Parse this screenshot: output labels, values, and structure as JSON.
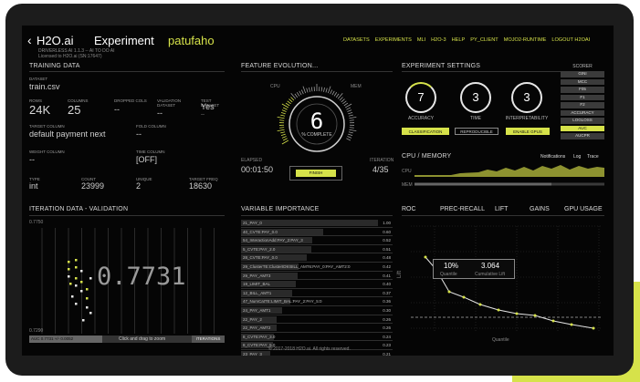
{
  "header": {
    "back_icon": "chevron-left-icon",
    "logo": "H2O.ai",
    "title_prefix": "Experiment",
    "experiment_name": "patufaho",
    "subtitle1": "DRIVERLESS AI 1.1.3 -- AI TO DO AI",
    "subtitle2": "Licensed to H2O.ai (SN:17647)",
    "nav": [
      "DATASETS",
      "EXPERIMENTS",
      "MLI",
      "H2O-3",
      "HELP",
      "PY_CLIENT",
      "MOJO2-RUNTIME",
      "LOGOUT H2OAI"
    ]
  },
  "training": {
    "section": "TRAINING DATA",
    "dataset_label": "DATASET",
    "dataset": "train.csv",
    "rows_label": "ROWS",
    "rows": "24K",
    "columns_label": "COLUMNS",
    "columns": "25",
    "dropped_label": "DROPPED COLS",
    "dropped": "--",
    "validation_label": "VALIDATION DATASET",
    "validation": "--",
    "test_label": "TEST DATASET",
    "test": "Yes",
    "test_sub": "--",
    "target_label": "TARGET COLUMN",
    "target": "default payment next",
    "fold_label": "FOLD COLUMN",
    "fold": "--",
    "weight_label": "WEIGHT COLUMN",
    "weight": "--",
    "time_label": "TIME COLUMN",
    "time": "[OFF]",
    "type_label": "TYPE",
    "type": "int",
    "count_label": "COUNT",
    "count": "23999",
    "unique_label": "UNIQUE",
    "unique": "2",
    "freq_label": "TARGET FREQ",
    "freq": "18630"
  },
  "evolution": {
    "section": "FEATURE EVOLUTION...",
    "cpu_label": "CPU",
    "mem_label": "MEM",
    "progress": 6,
    "progress_label": "% COMPLETE",
    "elapsed_label": "ELAPSED",
    "elapsed": "00:01:50",
    "iteration_label": "ITERATION",
    "iteration": "4/35",
    "finish": "FINISH"
  },
  "settings": {
    "section": "EXPERIMENT SETTINGS",
    "accuracy": "7",
    "accuracy_label": "ACCURACY",
    "time": "3",
    "time_label": "TIME",
    "interpretability": "3",
    "interpretability_label": "INTERPRETABILITY",
    "btn_classification": "CLASSIFICATION",
    "btn_reproducible": "REPRODUCIBLE",
    "btn_gpus": "ENABLE GPUS",
    "scorer_label": "SCORER",
    "scorers": [
      "GINI",
      "MCC",
      "F05",
      "F1",
      "F2",
      "ACCURACY",
      "LOGLOSS",
      "AUC",
      "AUCPR"
    ],
    "scorer_selected": "AUC"
  },
  "cpu": {
    "section": "CPU / MEMORY",
    "tabs": [
      "Notifications",
      "Log",
      "Trace"
    ],
    "cpu_label": "CPU",
    "mem_label": "MEM"
  },
  "iteration": {
    "section": "ITERATION DATA - VALIDATION",
    "top_value": "0.7750",
    "bottom_value": "0.7290",
    "big_value": "0.7731",
    "footer_left": "AUC 0.7731 +/- 0.0052",
    "footer_hint": "Click and drag to zoom",
    "footer_right": "ITERATIONS"
  },
  "importance": {
    "section": "VARIABLE IMPORTANCE",
    "rows": [
      {
        "name": "21_PAY_0",
        "value": "1.00"
      },
      {
        "name": "40_CVTE:PAY_0.0",
        "value": "0.60"
      },
      {
        "name": "54_InteractionAdd:PAY_2:PAY_3",
        "value": "0.52"
      },
      {
        "name": "5_CVTE:PAY_2.0",
        "value": "0.51"
      },
      {
        "name": "28_CVTE:PAY_0.0",
        "value": "0.48"
      },
      {
        "name": "29_ClusterTE:ClusterID9:BILL_AMT6:PAY_0:PAY_AMT2:0",
        "value": "0.42"
      },
      {
        "name": "29_PAY_AMT3",
        "value": "0.41"
      },
      {
        "name": "19_LIMIT_BAL",
        "value": "0.40"
      },
      {
        "name": "12_BILL_AMT1",
        "value": "0.37"
      },
      {
        "name": "47_NumCatTE:LIMIT_BAL:PAY_2:PAY_5:0",
        "value": "0.36"
      },
      {
        "name": "24_PAY_AMT1",
        "value": "0.30"
      },
      {
        "name": "22_PAY_2",
        "value": "0.26"
      },
      {
        "name": "22_PAY_AMT2",
        "value": "0.26"
      },
      {
        "name": "8_CVTE:PAY_3.0",
        "value": "0.24"
      },
      {
        "name": "8_CVTE:PAY_5.0",
        "value": "0.23"
      },
      {
        "name": "23_PAY_3",
        "value": "0.21"
      }
    ]
  },
  "curves": {
    "tabs": [
      "ROC",
      "PREC-RECALL",
      "LIFT",
      "GAINS",
      "GPU USAGE"
    ],
    "tooltip_q": "10%",
    "tooltip_q_label": "Quantile",
    "tooltip_l": "3.064",
    "tooltip_l_label": "Cumulative Lift",
    "xlabel": "Quantile",
    "ylabel": "Lift"
  },
  "footer": "© 2017-2018 H2O.ai. All rights reserved.",
  "colors": {
    "accent": "#d6e24a",
    "panel": "#050505",
    "frame": "#1c1c1c"
  }
}
